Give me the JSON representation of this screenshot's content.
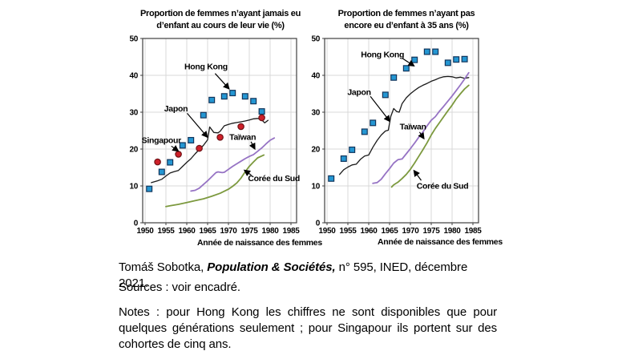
{
  "meta": {
    "attribution": {
      "author": "Tomáš Sobotka,",
      "journal": " Population & Sociétés,",
      "rest": " n° 595, INED, décembre 2021."
    },
    "sources": "Sources : voir encadré.",
    "notes": "Notes : pour Hong Kong les chiffres ne sont disponibles que pour quelques générations seulement ; pour Singapour ils portent sur des cohortes de cinq ans."
  },
  "theme": {
    "background": "#FFFFFF",
    "grid": "#D9D9D9",
    "axis": "#3F3F3F",
    "annotation": "#000000",
    "hong_kong_blue": "#2496D2",
    "singapore_red": "#CE2029",
    "japan_black": "#1A1A1A",
    "taiwan_purple": "#9673C4",
    "korea_olive": "#7C993E"
  },
  "chart_data": [
    {
      "type": "mixed",
      "title_lines": [
        "Proportion de femmes n’ayant jamais eu",
        "d’enfant au cours de leur vie (%)"
      ],
      "xlabel": "Année de naissance des femmes",
      "ylabel": "",
      "xlim": [
        1949.4,
        1986.3
      ],
      "ylim": [
        0,
        50
      ],
      "x_ticks": [
        1950,
        1955,
        1960,
        1965,
        1970,
        1975,
        1980,
        1985
      ],
      "y_ticks": [
        0,
        10,
        20,
        30,
        40,
        50
      ],
      "grid": true,
      "series": [
        {
          "name": "Japon",
          "type": "line",
          "color": "#1A1A1A",
          "width": 1.3,
          "points": [
            [
              1951.5,
              10.9
            ],
            [
              1953,
              11.4
            ],
            [
              1954,
              11.8
            ],
            [
              1955,
              12.7
            ],
            [
              1956,
              13.5
            ],
            [
              1957,
              13.9
            ],
            [
              1958,
              14.2
            ],
            [
              1959,
              15.3
            ],
            [
              1960,
              16.4
            ],
            [
              1961,
              17.4
            ],
            [
              1962,
              18.7
            ],
            [
              1963,
              19.9
            ],
            [
              1964,
              21.0
            ],
            [
              1965,
              22.5
            ],
            [
              1965.5,
              26.0
            ],
            [
              1966.5,
              24.5
            ],
            [
              1967.5,
              24.4
            ],
            [
              1968,
              24.8
            ],
            [
              1969,
              26.3
            ],
            [
              1970,
              26.7
            ],
            [
              1971,
              27.0
            ],
            [
              1972,
              27.2
            ],
            [
              1973,
              27.4
            ],
            [
              1974,
              27.6
            ],
            [
              1975,
              27.9
            ],
            [
              1976,
              28.2
            ],
            [
              1977,
              28.3
            ],
            [
              1978,
              27.9
            ],
            [
              1978.7,
              27.1
            ],
            [
              1979.5,
              27.8
            ]
          ]
        },
        {
          "name": "Taïwan",
          "type": "line",
          "color": "#9673C4",
          "width": 1.8,
          "points": [
            [
              1961,
              8.6
            ],
            [
              1962,
              8.8
            ],
            [
              1963,
              9.4
            ],
            [
              1964,
              10.4
            ],
            [
              1965,
              11.4
            ],
            [
              1966,
              12.5
            ],
            [
              1967,
              13.6
            ],
            [
              1967.5,
              13.8
            ],
            [
              1968.5,
              13.6
            ],
            [
              1969,
              13.7
            ],
            [
              1970,
              14.5
            ],
            [
              1971,
              15.3
            ],
            [
              1972,
              16.0
            ],
            [
              1973,
              16.7
            ],
            [
              1974,
              17.4
            ],
            [
              1975,
              18.0
            ],
            [
              1976,
              18.5
            ],
            [
              1977,
              19.4
            ],
            [
              1978,
              20.3
            ],
            [
              1979,
              21.4
            ],
            [
              1980,
              22.4
            ],
            [
              1981,
              23.0
            ]
          ]
        },
        {
          "name": "Corée du Sud",
          "type": "line",
          "color": "#7C993E",
          "width": 1.8,
          "points": [
            [
              1955,
              4.4
            ],
            [
              1956,
              4.6
            ],
            [
              1958,
              5.0
            ],
            [
              1960,
              5.5
            ],
            [
              1962,
              6.0
            ],
            [
              1964,
              6.5
            ],
            [
              1966,
              7.2
            ],
            [
              1968,
              8.0
            ],
            [
              1970,
              9.1
            ],
            [
              1971,
              9.9
            ],
            [
              1972,
              10.8
            ],
            [
              1973,
              12.1
            ],
            [
              1974,
              13.8
            ],
            [
              1975,
              15.3
            ],
            [
              1976,
              16.5
            ],
            [
              1977,
              17.6
            ],
            [
              1978.5,
              18.4
            ]
          ]
        },
        {
          "name": "Hong Kong",
          "type": "scatter",
          "marker": "square",
          "color": "#2496D2",
          "edge": "#12355B",
          "points": [
            [
              1951,
              9.2
            ],
            [
              1954,
              13.8
            ],
            [
              1956,
              16.4
            ],
            [
              1959,
              21.0
            ],
            [
              1961,
              22.4
            ],
            [
              1964,
              29.2
            ],
            [
              1966,
              33.3
            ],
            [
              1969,
              34.3
            ],
            [
              1971,
              35.2
            ],
            [
              1974,
              34.3
            ],
            [
              1976,
              33.0
            ],
            [
              1978,
              30.2
            ]
          ]
        },
        {
          "name": "Singapour",
          "type": "scatter",
          "marker": "circle",
          "color": "#CE2029",
          "edge": "#701317",
          "points": [
            [
              1953,
              16.5
            ],
            [
              1958,
              18.6
            ],
            [
              1963,
              20.2
            ],
            [
              1968,
              23.2
            ],
            [
              1973,
              26.1
            ],
            [
              1978,
              28.5
            ]
          ]
        }
      ],
      "annotations": [
        {
          "text": "Hong Kong",
          "tx": 1964.6,
          "ty": 42.4,
          "arrow": [
            1966.8,
            40.5,
            1970.1,
            36.4
          ]
        },
        {
          "text": "Japon",
          "tx": 1957.4,
          "ty": 31.0,
          "arrow": [
            1960.1,
            29.7,
            1964.9,
            23.3
          ]
        },
        {
          "text": "Singapour",
          "tx": 1953.9,
          "ty": 22.4,
          "arrow": [
            1956.3,
            20.8,
            1957.9,
            19.5
          ]
        },
        {
          "text": "Taïwan",
          "tx": 1973.4,
          "ty": 23.3,
          "arrow": [
            1975.4,
            22.0,
            1976.3,
            20.1
          ]
        },
        {
          "text": "Corée du Sud",
          "tx": 1980.9,
          "ty": 12.1,
          "arrow": [
            1975.5,
            12.9,
            1973.9,
            14.2
          ]
        }
      ]
    },
    {
      "type": "mixed",
      "title_lines": [
        "Proportion de femmes n’ayant pas",
        "encore eu d’enfant à 35 ans (%)"
      ],
      "xlabel": "Année de naissance des femmes",
      "ylabel": "",
      "xlim": [
        1949.4,
        1986.3
      ],
      "ylim": [
        0,
        50
      ],
      "x_ticks": [
        1950,
        1955,
        1960,
        1965,
        1970,
        1975,
        1980,
        1985
      ],
      "y_ticks": [
        0,
        10,
        20,
        30,
        40,
        50
      ],
      "grid": true,
      "series": [
        {
          "name": "Japon",
          "type": "line",
          "color": "#1A1A1A",
          "width": 1.3,
          "points": [
            [
              1953,
              13.1
            ],
            [
              1954,
              14.4
            ],
            [
              1955,
              15.1
            ],
            [
              1956,
              15.7
            ],
            [
              1957,
              15.9
            ],
            [
              1958,
              17.2
            ],
            [
              1959,
              18.1
            ],
            [
              1960,
              18.4
            ],
            [
              1961,
              20.5
            ],
            [
              1962,
              22.3
            ],
            [
              1963,
              23.8
            ],
            [
              1964,
              24.9
            ],
            [
              1964.7,
              25.1
            ],
            [
              1965.3,
              28.9
            ],
            [
              1966,
              31.0
            ],
            [
              1966.7,
              30.2
            ],
            [
              1967.3,
              30.0
            ],
            [
              1968,
              32.3
            ],
            [
              1969,
              33.9
            ],
            [
              1970,
              35.0
            ],
            [
              1971,
              35.9
            ],
            [
              1972,
              36.7
            ],
            [
              1973,
              37.3
            ],
            [
              1974,
              37.8
            ],
            [
              1975,
              38.4
            ],
            [
              1976,
              38.8
            ],
            [
              1977,
              39.3
            ],
            [
              1978,
              39.6
            ],
            [
              1979,
              39.7
            ],
            [
              1980,
              39.6
            ],
            [
              1981,
              39.3
            ],
            [
              1982,
              39.5
            ],
            [
              1983,
              39.2
            ],
            [
              1984,
              39.4
            ]
          ]
        },
        {
          "name": "Taïwan",
          "type": "line",
          "color": "#9673C4",
          "width": 1.8,
          "points": [
            [
              1961,
              10.7
            ],
            [
              1962,
              10.9
            ],
            [
              1963,
              11.8
            ],
            [
              1964,
              13.3
            ],
            [
              1965,
              14.7
            ],
            [
              1966,
              16.2
            ],
            [
              1967,
              17.1
            ],
            [
              1968,
              17.3
            ],
            [
              1969,
              18.7
            ],
            [
              1970,
              20.1
            ],
            [
              1971,
              21.6
            ],
            [
              1972,
              23.2
            ],
            [
              1973,
              24.6
            ],
            [
              1974,
              26.3
            ],
            [
              1975,
              27.8
            ],
            [
              1976,
              28.8
            ],
            [
              1977,
              30.3
            ],
            [
              1978,
              31.6
            ],
            [
              1979,
              33.0
            ],
            [
              1980,
              34.4
            ],
            [
              1981,
              35.9
            ],
            [
              1982,
              37.4
            ],
            [
              1983,
              39.0
            ],
            [
              1984,
              40.7
            ]
          ]
        },
        {
          "name": "Corée du Sud",
          "type": "line",
          "color": "#7C993E",
          "width": 1.8,
          "points": [
            [
              1965.5,
              9.7
            ],
            [
              1966,
              10.3
            ],
            [
              1967,
              11.0
            ],
            [
              1968,
              12.0
            ],
            [
              1969,
              13.1
            ],
            [
              1970,
              14.5
            ],
            [
              1971,
              16.2
            ],
            [
              1972,
              18.0
            ],
            [
              1973,
              19.8
            ],
            [
              1974,
              21.7
            ],
            [
              1975,
              23.8
            ],
            [
              1976,
              25.6
            ],
            [
              1977,
              27.2
            ],
            [
              1978,
              28.8
            ],
            [
              1979,
              30.4
            ],
            [
              1980,
              31.9
            ],
            [
              1981,
              33.6
            ],
            [
              1982,
              35.0
            ],
            [
              1983,
              36.3
            ],
            [
              1984,
              37.3
            ]
          ]
        },
        {
          "name": "Hong Kong",
          "type": "scatter",
          "marker": "square",
          "color": "#2496D2",
          "edge": "#12355B",
          "points": [
            [
              1951,
              12.0
            ],
            [
              1954,
              17.4
            ],
            [
              1956,
              19.8
            ],
            [
              1959,
              24.7
            ],
            [
              1961,
              27.1
            ],
            [
              1964,
              34.7
            ],
            [
              1966,
              39.4
            ],
            [
              1969,
              41.9
            ],
            [
              1971,
              44.2
            ],
            [
              1974,
              46.4
            ],
            [
              1976,
              46.4
            ],
            [
              1979,
              43.4
            ],
            [
              1981,
              44.3
            ],
            [
              1983,
              44.4
            ]
          ]
        }
      ],
      "annotations": [
        {
          "text": "Hong Kong",
          "tx": 1963.3,
          "ty": 45.7,
          "arrow": [
            1968.1,
            44.6,
            1970.8,
            42.6
          ]
        },
        {
          "text": "Japon",
          "tx": 1957.7,
          "ty": 35.4,
          "arrow": [
            1960.4,
            34.3,
            1965.0,
            27.6
          ]
        },
        {
          "text": "Taïwan",
          "tx": 1970.6,
          "ty": 26.1,
          "arrow": [
            1972.2,
            24.6,
            1973.2,
            22.9
          ]
        },
        {
          "text": "Corée du Sud",
          "tx": 1977.7,
          "ty": 10.0,
          "arrow": [
            1972.6,
            11.5,
            1970.9,
            14.1
          ]
        }
      ]
    }
  ]
}
